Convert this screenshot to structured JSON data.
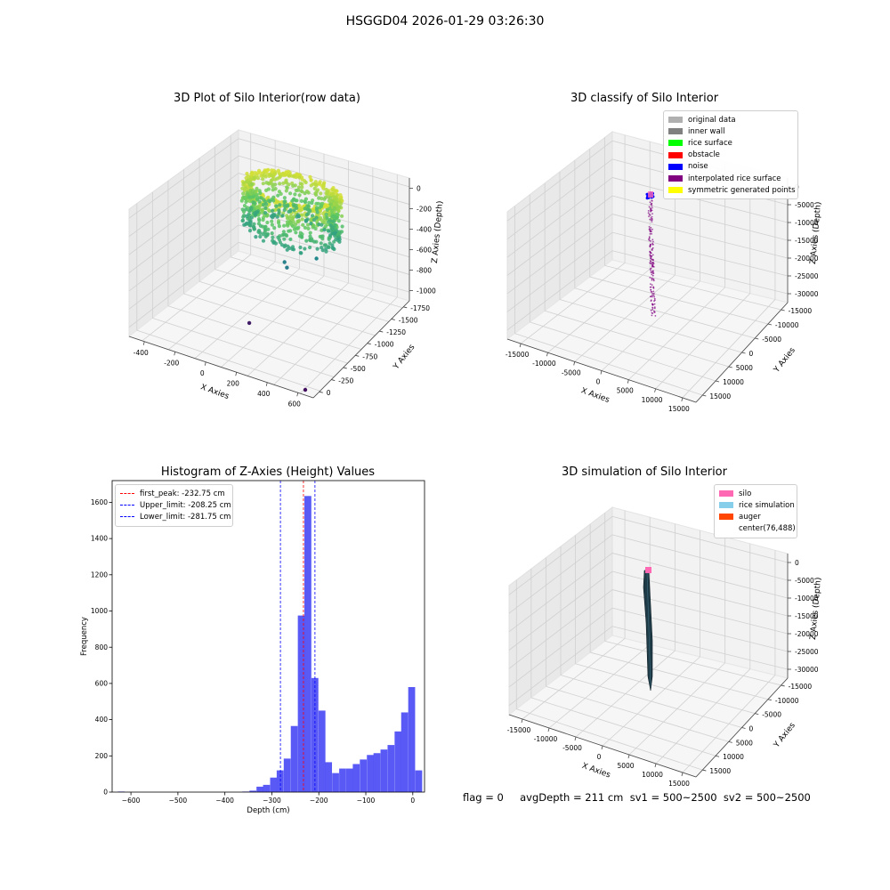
{
  "figure_title": "HSGGD04 2026-01-29 03:26:30",
  "footer": {
    "text": "flag = 0     avgDepth = 211 cm  sv1 = 500~2500  sv2 = 500~2500"
  },
  "colors": {
    "histogram_bars": "#5050f5",
    "first_peak_line": "#ff0000",
    "limit_lines": "#0000ff"
  },
  "chart_data": [
    {
      "type": "scatter",
      "projection": "3d",
      "title": "3D Plot of Silo Interior(row data)",
      "xlabel": "X Axies",
      "ylabel": "Y Axies",
      "zlabel": "Z Axies (Depth)",
      "x_ticks": [
        "-400",
        "-200",
        "0",
        "200",
        "400",
        "600"
      ],
      "y_ticks": [
        "0",
        "-250",
        "-500",
        "-750",
        "-1000",
        "-1250",
        "-1500",
        "-1750"
      ],
      "z_ticks": [
        "0",
        "-200",
        "-400",
        "-600",
        "-800",
        "-1000"
      ],
      "xlim": [
        -500,
        650
      ],
      "ylim": [
        -1800,
        100
      ],
      "zlim": [
        -1100,
        50
      ],
      "colormap": "viridis",
      "ring": {
        "cx": 76,
        "cy": -488,
        "radius": 300,
        "z_top": -20,
        "z_bottom": -450
      },
      "outliers": [
        {
          "x": 100,
          "y": -700,
          "z": -600
        },
        {
          "x": 130,
          "y": -740,
          "z": -620
        },
        {
          "x": 260,
          "y": -560,
          "z": -560
        },
        {
          "x": 30,
          "y": -1150,
          "z": -1000
        },
        {
          "x": 600,
          "y": -1800,
          "z": -1050
        }
      ],
      "grid": true
    },
    {
      "type": "scatter",
      "projection": "3d",
      "title": "3D classify of Silo Interior",
      "xlabel": "X Axies",
      "ylabel": "Y Axies",
      "zlabel": "Z Axies (Depth)",
      "x_ticks": [
        "-15000",
        "-10000",
        "-5000",
        "0",
        "5000",
        "10000",
        "15000"
      ],
      "y_ticks": [
        "15000",
        "10000",
        "5000",
        "0",
        "-5000",
        "-10000",
        "-15000"
      ],
      "z_ticks": [
        "0",
        "-5000",
        "-10000",
        "-15000",
        "-20000",
        "-25000",
        "-30000"
      ],
      "legend": [
        {
          "label": "original data",
          "color": "#b0b0b0"
        },
        {
          "label": "inner wall",
          "color": "#808080"
        },
        {
          "label": "rice surface",
          "color": "#00ff00"
        },
        {
          "label": "obstacle",
          "color": "#ff0000"
        },
        {
          "label": "noise",
          "color": "#0000ff"
        },
        {
          "label": "interpolated rice surface",
          "color": "#800080"
        },
        {
          "label": "symmetric generated points",
          "color": "#ffff00"
        }
      ],
      "column": {
        "x": 76,
        "y": 488,
        "z_top": 0,
        "z_bottom": -33000
      },
      "grid": true
    },
    {
      "type": "bar",
      "title": "Histogram of Z-Axies (Height) Values",
      "xlabel": "Depth (cm)",
      "ylabel": "Frequency",
      "xlim": [
        -640,
        25
      ],
      "ylim": [
        0,
        1720
      ],
      "x_ticks": [
        -600,
        -500,
        -400,
        -300,
        -200,
        -100,
        0
      ],
      "y_ticks": [
        0,
        200,
        400,
        600,
        800,
        1000,
        1200,
        1400,
        1600
      ],
      "bin_width": 14.7,
      "bins": [
        {
          "x": -613,
          "y": 3
        },
        {
          "x": -348,
          "y": 3
        },
        {
          "x": -333,
          "y": 8
        },
        {
          "x": -318,
          "y": 30
        },
        {
          "x": -304,
          "y": 40
        },
        {
          "x": -289,
          "y": 80
        },
        {
          "x": -275,
          "y": 120
        },
        {
          "x": -260,
          "y": 185
        },
        {
          "x": -245,
          "y": 365
        },
        {
          "x": -230,
          "y": 975
        },
        {
          "x": -216,
          "y": 1635
        },
        {
          "x": -201,
          "y": 630
        },
        {
          "x": -186,
          "y": 450
        },
        {
          "x": -172,
          "y": 165
        },
        {
          "x": -157,
          "y": 105
        },
        {
          "x": -142,
          "y": 130
        },
        {
          "x": -127,
          "y": 130
        },
        {
          "x": -113,
          "y": 155
        },
        {
          "x": -98,
          "y": 180
        },
        {
          "x": -83,
          "y": 205
        },
        {
          "x": -69,
          "y": 215
        },
        {
          "x": -54,
          "y": 235
        },
        {
          "x": -39,
          "y": 260
        },
        {
          "x": -24,
          "y": 335
        },
        {
          "x": -10,
          "y": 440
        },
        {
          "x": 5,
          "y": 580
        },
        {
          "x": 20,
          "y": 120
        }
      ],
      "vlines": [
        {
          "x": -232.75,
          "label": "first_peak: -232.75 cm",
          "color": "#ff0000"
        },
        {
          "x": -208.25,
          "label": "Upper_limit: -208.25 cm",
          "color": "#0000ff"
        },
        {
          "x": -281.75,
          "label": "Lower_limit: -281.75 cm",
          "color": "#0000ff"
        }
      ],
      "legend_position": "upper left",
      "grid": false
    },
    {
      "type": "surface",
      "projection": "3d",
      "title": "3D simulation of Silo Interior",
      "xlabel": "X Axies",
      "ylabel": "Y Axies",
      "zlabel": "Z Axies (Depth)",
      "x_ticks": [
        "-15000",
        "-10000",
        "-5000",
        "0",
        "5000",
        "10000",
        "15000"
      ],
      "y_ticks": [
        "15000",
        "10000",
        "5000",
        "0",
        "-5000",
        "-10000",
        "-15000"
      ],
      "z_ticks": [
        "0",
        "-5000",
        "-10000",
        "-15000",
        "-20000",
        "-25000",
        "-30000"
      ],
      "legend": [
        {
          "label": "silo",
          "color": "#ff69b4"
        },
        {
          "label": "rice simulation",
          "color": "#87ceeb"
        },
        {
          "label": "auger",
          "color": "#ff4500"
        },
        {
          "label": "center(76,488)",
          "color": "#ffffff"
        }
      ],
      "grid": true
    }
  ]
}
